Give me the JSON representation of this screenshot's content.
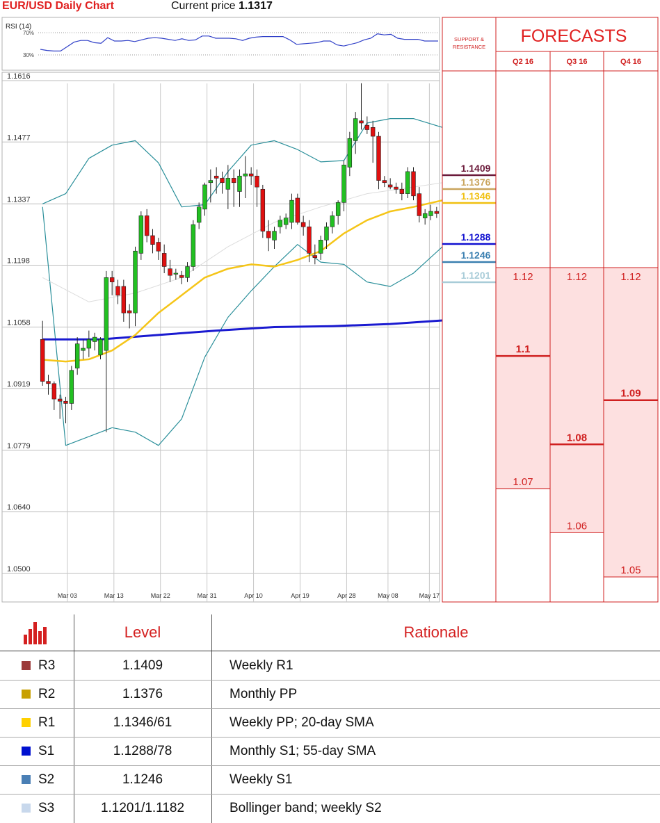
{
  "header": {
    "title": "EUR/USD Daily Chart",
    "price_label": "Current price",
    "price_value": "1.1317"
  },
  "chart_data": {
    "type": "candlestick",
    "instrument": "EUR/USD",
    "timeframe": "Daily",
    "current_price": 1.1317,
    "y_ticks": [
      "1.1616",
      "1.1477",
      "1.1337",
      "1.1198",
      "1.1058",
      "1.0919",
      "1.0779",
      "1.0640",
      "1.0500"
    ],
    "ylim": [
      1.05,
      1.1616
    ],
    "x_ticks": [
      "Mar 03",
      "Mar 13",
      "Mar 22",
      "Mar 31",
      "Apr 10",
      "Apr 19",
      "Apr 28",
      "May 08",
      "May 17"
    ],
    "grid": true,
    "rsi": {
      "label": "RSI (14)",
      "upper_label": "70%",
      "lower_label": "30%",
      "values": [
        40,
        38,
        37,
        37,
        45,
        53,
        56,
        56,
        52,
        51,
        61,
        55,
        55,
        56,
        54,
        57,
        60,
        61,
        60,
        58,
        56,
        59,
        56,
        57,
        64,
        64,
        60,
        60,
        60,
        59,
        56,
        60,
        62,
        63,
        63,
        63,
        63,
        57,
        49,
        50,
        51,
        52,
        55,
        55,
        48,
        46,
        49,
        52,
        57,
        60,
        68,
        66,
        67,
        60,
        58,
        58,
        58,
        55,
        55,
        55
      ]
    },
    "candles": [
      [
        1.103,
        1.1072,
        1.0925,
        1.0935
      ],
      [
        1.0935,
        1.095,
        1.0905,
        1.093
      ],
      [
        1.093,
        1.0935,
        1.087,
        1.0895
      ],
      [
        1.0895,
        1.0905,
        1.085,
        1.089
      ],
      [
        1.089,
        1.09,
        1.084,
        1.0885
      ],
      [
        1.0885,
        1.097,
        1.087,
        1.096
      ],
      [
        1.0965,
        1.1035,
        1.095,
        1.102
      ],
      [
        1.1005,
        1.103,
        1.0985,
        1.101
      ],
      [
        1.101,
        1.105,
        1.099,
        1.103
      ],
      [
        1.1025,
        1.1045,
        1.1005,
        1.1035
      ],
      [
        1.0995,
        1.1035,
        1.0985,
        1.103
      ],
      [
        1.1005,
        1.1185,
        1.082,
        1.117
      ],
      [
        1.117,
        1.1185,
        1.113,
        1.116
      ],
      [
        1.115,
        1.1165,
        1.111,
        1.113
      ],
      [
        1.115,
        1.1165,
        1.107,
        1.109
      ],
      [
        1.1095,
        1.111,
        1.1055,
        1.109
      ],
      [
        1.109,
        1.124,
        1.106,
        1.123
      ],
      [
        1.1225,
        1.132,
        1.121,
        1.131
      ],
      [
        1.131,
        1.1325,
        1.125,
        1.1265
      ],
      [
        1.1265,
        1.128,
        1.1225,
        1.1245
      ],
      [
        1.125,
        1.126,
        1.121,
        1.123
      ],
      [
        1.1225,
        1.1245,
        1.118,
        1.1195
      ],
      [
        1.119,
        1.121,
        1.116,
        1.1175
      ],
      [
        1.118,
        1.119,
        1.1165,
        1.118
      ],
      [
        1.1175,
        1.1185,
        1.1155,
        1.117
      ],
      [
        1.117,
        1.1205,
        1.116,
        1.1195
      ],
      [
        1.1195,
        1.13,
        1.1185,
        1.129
      ],
      [
        1.1295,
        1.134,
        1.128,
        1.133
      ],
      [
        1.1325,
        1.1385,
        1.131,
        1.138
      ],
      [
        1.1385,
        1.1415,
        1.134,
        1.139
      ],
      [
        1.14,
        1.142,
        1.136,
        1.1395
      ],
      [
        1.1395,
        1.141,
        1.136,
        1.1385
      ],
      [
        1.137,
        1.1425,
        1.1325,
        1.1395
      ],
      [
        1.1395,
        1.1415,
        1.133,
        1.1385
      ],
      [
        1.1365,
        1.1415,
        1.133,
        1.14
      ],
      [
        1.14,
        1.1445,
        1.135,
        1.1405
      ],
      [
        1.1405,
        1.142,
        1.138,
        1.14
      ],
      [
        1.14,
        1.1415,
        1.133,
        1.1375
      ],
      [
        1.137,
        1.138,
        1.126,
        1.1275
      ],
      [
        1.1275,
        1.13,
        1.123,
        1.126
      ],
      [
        1.1255,
        1.1285,
        1.1235,
        1.1275
      ],
      [
        1.1285,
        1.131,
        1.127,
        1.13
      ],
      [
        1.129,
        1.1315,
        1.128,
        1.1305
      ],
      [
        1.1295,
        1.136,
        1.128,
        1.1345
      ],
      [
        1.135,
        1.136,
        1.129,
        1.1295
      ],
      [
        1.1295,
        1.131,
        1.1265,
        1.1285
      ],
      [
        1.1285,
        1.13,
        1.1205,
        1.1225
      ],
      [
        1.122,
        1.1245,
        1.12,
        1.1215
      ],
      [
        1.1225,
        1.1265,
        1.121,
        1.1255
      ],
      [
        1.1255,
        1.1295,
        1.1235,
        1.1285
      ],
      [
        1.1285,
        1.132,
        1.127,
        1.131
      ],
      [
        1.131,
        1.1345,
        1.129,
        1.134
      ],
      [
        1.134,
        1.1435,
        1.132,
        1.1425
      ],
      [
        1.142,
        1.15,
        1.14,
        1.1485
      ],
      [
        1.148,
        1.1545,
        1.145,
        1.153
      ],
      [
        1.1525,
        1.161,
        1.1505,
        1.152
      ],
      [
        1.1515,
        1.1535,
        1.1495,
        1.1505
      ],
      [
        1.151,
        1.1525,
        1.143,
        1.149
      ],
      [
        1.149,
        1.15,
        1.137,
        1.139
      ],
      [
        1.139,
        1.14,
        1.1375,
        1.1385
      ],
      [
        1.138,
        1.1395,
        1.137,
        1.1375
      ],
      [
        1.1375,
        1.1385,
        1.136,
        1.137
      ],
      [
        1.137,
        1.1385,
        1.1345,
        1.136
      ],
      [
        1.136,
        1.142,
        1.135,
        1.141
      ],
      [
        1.141,
        1.142,
        1.1345,
        1.1355
      ],
      [
        1.136,
        1.1375,
        1.1295,
        1.131
      ],
      [
        1.1305,
        1.1325,
        1.129,
        1.1315
      ],
      [
        1.131,
        1.1335,
        1.13,
        1.132
      ],
      [
        1.132,
        1.133,
        1.1305,
        1.1315
      ]
    ],
    "sma20": [
      [
        0,
        1.0984
      ],
      [
        4,
        1.098
      ],
      [
        8,
        1.0985
      ],
      [
        12,
        1.1005
      ],
      [
        16,
        1.104
      ],
      [
        20,
        1.109
      ],
      [
        24,
        1.113
      ],
      [
        28,
        1.117
      ],
      [
        32,
        1.119
      ],
      [
        36,
        1.12
      ],
      [
        40,
        1.1195
      ],
      [
        44,
        1.121
      ],
      [
        48,
        1.123
      ],
      [
        52,
        1.127
      ],
      [
        56,
        1.13
      ],
      [
        60,
        1.132
      ],
      [
        64,
        1.133
      ],
      [
        69,
        1.1345
      ]
    ],
    "sma55": [
      [
        0,
        1.103
      ],
      [
        10,
        1.103
      ],
      [
        20,
        1.104
      ],
      [
        30,
        1.105
      ],
      [
        40,
        1.1058
      ],
      [
        50,
        1.106
      ],
      [
        60,
        1.1065
      ],
      [
        69,
        1.1073
      ]
    ],
    "sma_faint": [
      [
        0,
        1.117
      ],
      [
        8,
        1.1115
      ],
      [
        16,
        1.1135
      ],
      [
        24,
        1.117
      ],
      [
        32,
        1.124
      ],
      [
        40,
        1.1295
      ],
      [
        48,
        1.133
      ],
      [
        56,
        1.136
      ],
      [
        64,
        1.1375
      ],
      [
        69,
        1.1385
      ]
    ],
    "bb_upper": [
      [
        0,
        1.1337
      ],
      [
        4,
        1.136
      ],
      [
        8,
        1.144
      ],
      [
        12,
        1.147
      ],
      [
        16,
        1.148
      ],
      [
        20,
        1.143
      ],
      [
        24,
        1.133
      ],
      [
        28,
        1.1335
      ],
      [
        32,
        1.141
      ],
      [
        36,
        1.147
      ],
      [
        40,
        1.148
      ],
      [
        44,
        1.146
      ],
      [
        48,
        1.1432
      ],
      [
        52,
        1.1435
      ],
      [
        56,
        1.152
      ],
      [
        60,
        1.153
      ],
      [
        64,
        1.153
      ],
      [
        69,
        1.151
      ]
    ],
    "bb_lower": [
      [
        0,
        1.133
      ],
      [
        4,
        1.079
      ],
      [
        8,
        1.081
      ],
      [
        12,
        1.083
      ],
      [
        16,
        1.082
      ],
      [
        20,
        1.079
      ],
      [
        24,
        1.085
      ],
      [
        28,
        1.099
      ],
      [
        32,
        1.108
      ],
      [
        36,
        1.114
      ],
      [
        40,
        1.1195
      ],
      [
        44,
        1.1245
      ],
      [
        48,
        1.1205
      ],
      [
        52,
        1.12
      ],
      [
        56,
        1.116
      ],
      [
        60,
        1.115
      ],
      [
        64,
        1.118
      ],
      [
        69,
        1.124
      ]
    ],
    "levels": [
      {
        "label": "1.1409",
        "value": 1.1409,
        "color": "#6b1a3a"
      },
      {
        "label": "1.1376",
        "value": 1.1376,
        "color": "#c9a45c"
      },
      {
        "label": "1.1346",
        "value": 1.1346,
        "color": "#f0c010"
      },
      {
        "label": "1.1288",
        "value": 1.1288,
        "color": "#1010d0"
      },
      {
        "label": "1.1246",
        "value": 1.1246,
        "color": "#3a7fb0"
      },
      {
        "label": "1.1201",
        "value": 1.1201,
        "color": "#a8ccd8"
      }
    ]
  },
  "side": {
    "sr_label_line1": "SUPPORT &",
    "sr_label_line2": "RESISTANCE",
    "forecasts_title": "FORECASTS",
    "columns": [
      {
        "label": "Q2 16",
        "high": "1.12",
        "mid": "1.1",
        "low": "1.07",
        "high_v": 1.12,
        "mid_v": 1.1,
        "low_v": 1.07
      },
      {
        "label": "Q3 16",
        "high": "1.12",
        "mid": "1.08",
        "low": "1.06",
        "high_v": 1.12,
        "mid_v": 1.08,
        "low_v": 1.06
      },
      {
        "label": "Q4 16",
        "high": "1.12",
        "mid": "1.09",
        "low": "1.05",
        "high_v": 1.12,
        "mid_v": 1.09,
        "low_v": 1.05
      }
    ]
  },
  "table": {
    "col_level": "Level",
    "col_rationale": "Rationale",
    "rows": [
      {
        "name": "R3",
        "level": "1.1409",
        "rationale": "Weekly R1",
        "color": "#9c3a3a"
      },
      {
        "name": "R2",
        "level": "1.1376",
        "rationale": "Monthly PP",
        "color": "#c8a000"
      },
      {
        "name": "R1",
        "level": "1.1346/61",
        "rationale": "Weekly PP; 20-day SMA",
        "color": "#ffd000"
      },
      {
        "name": "S1",
        "level": "1.1288/78",
        "rationale": "Monthly S1; 55-day SMA",
        "color": "#0010d0"
      },
      {
        "name": "S2",
        "level": "1.1246",
        "rationale": "Weekly S1",
        "color": "#4a7fb5"
      },
      {
        "name": "S3",
        "level": "1.1201/1.1182",
        "rationale": "Bollinger band; weekly S2",
        "color": "#c8d8ec"
      }
    ]
  },
  "colors": {
    "up": "#22c022",
    "down": "#e01010",
    "accent": "#e02020"
  }
}
